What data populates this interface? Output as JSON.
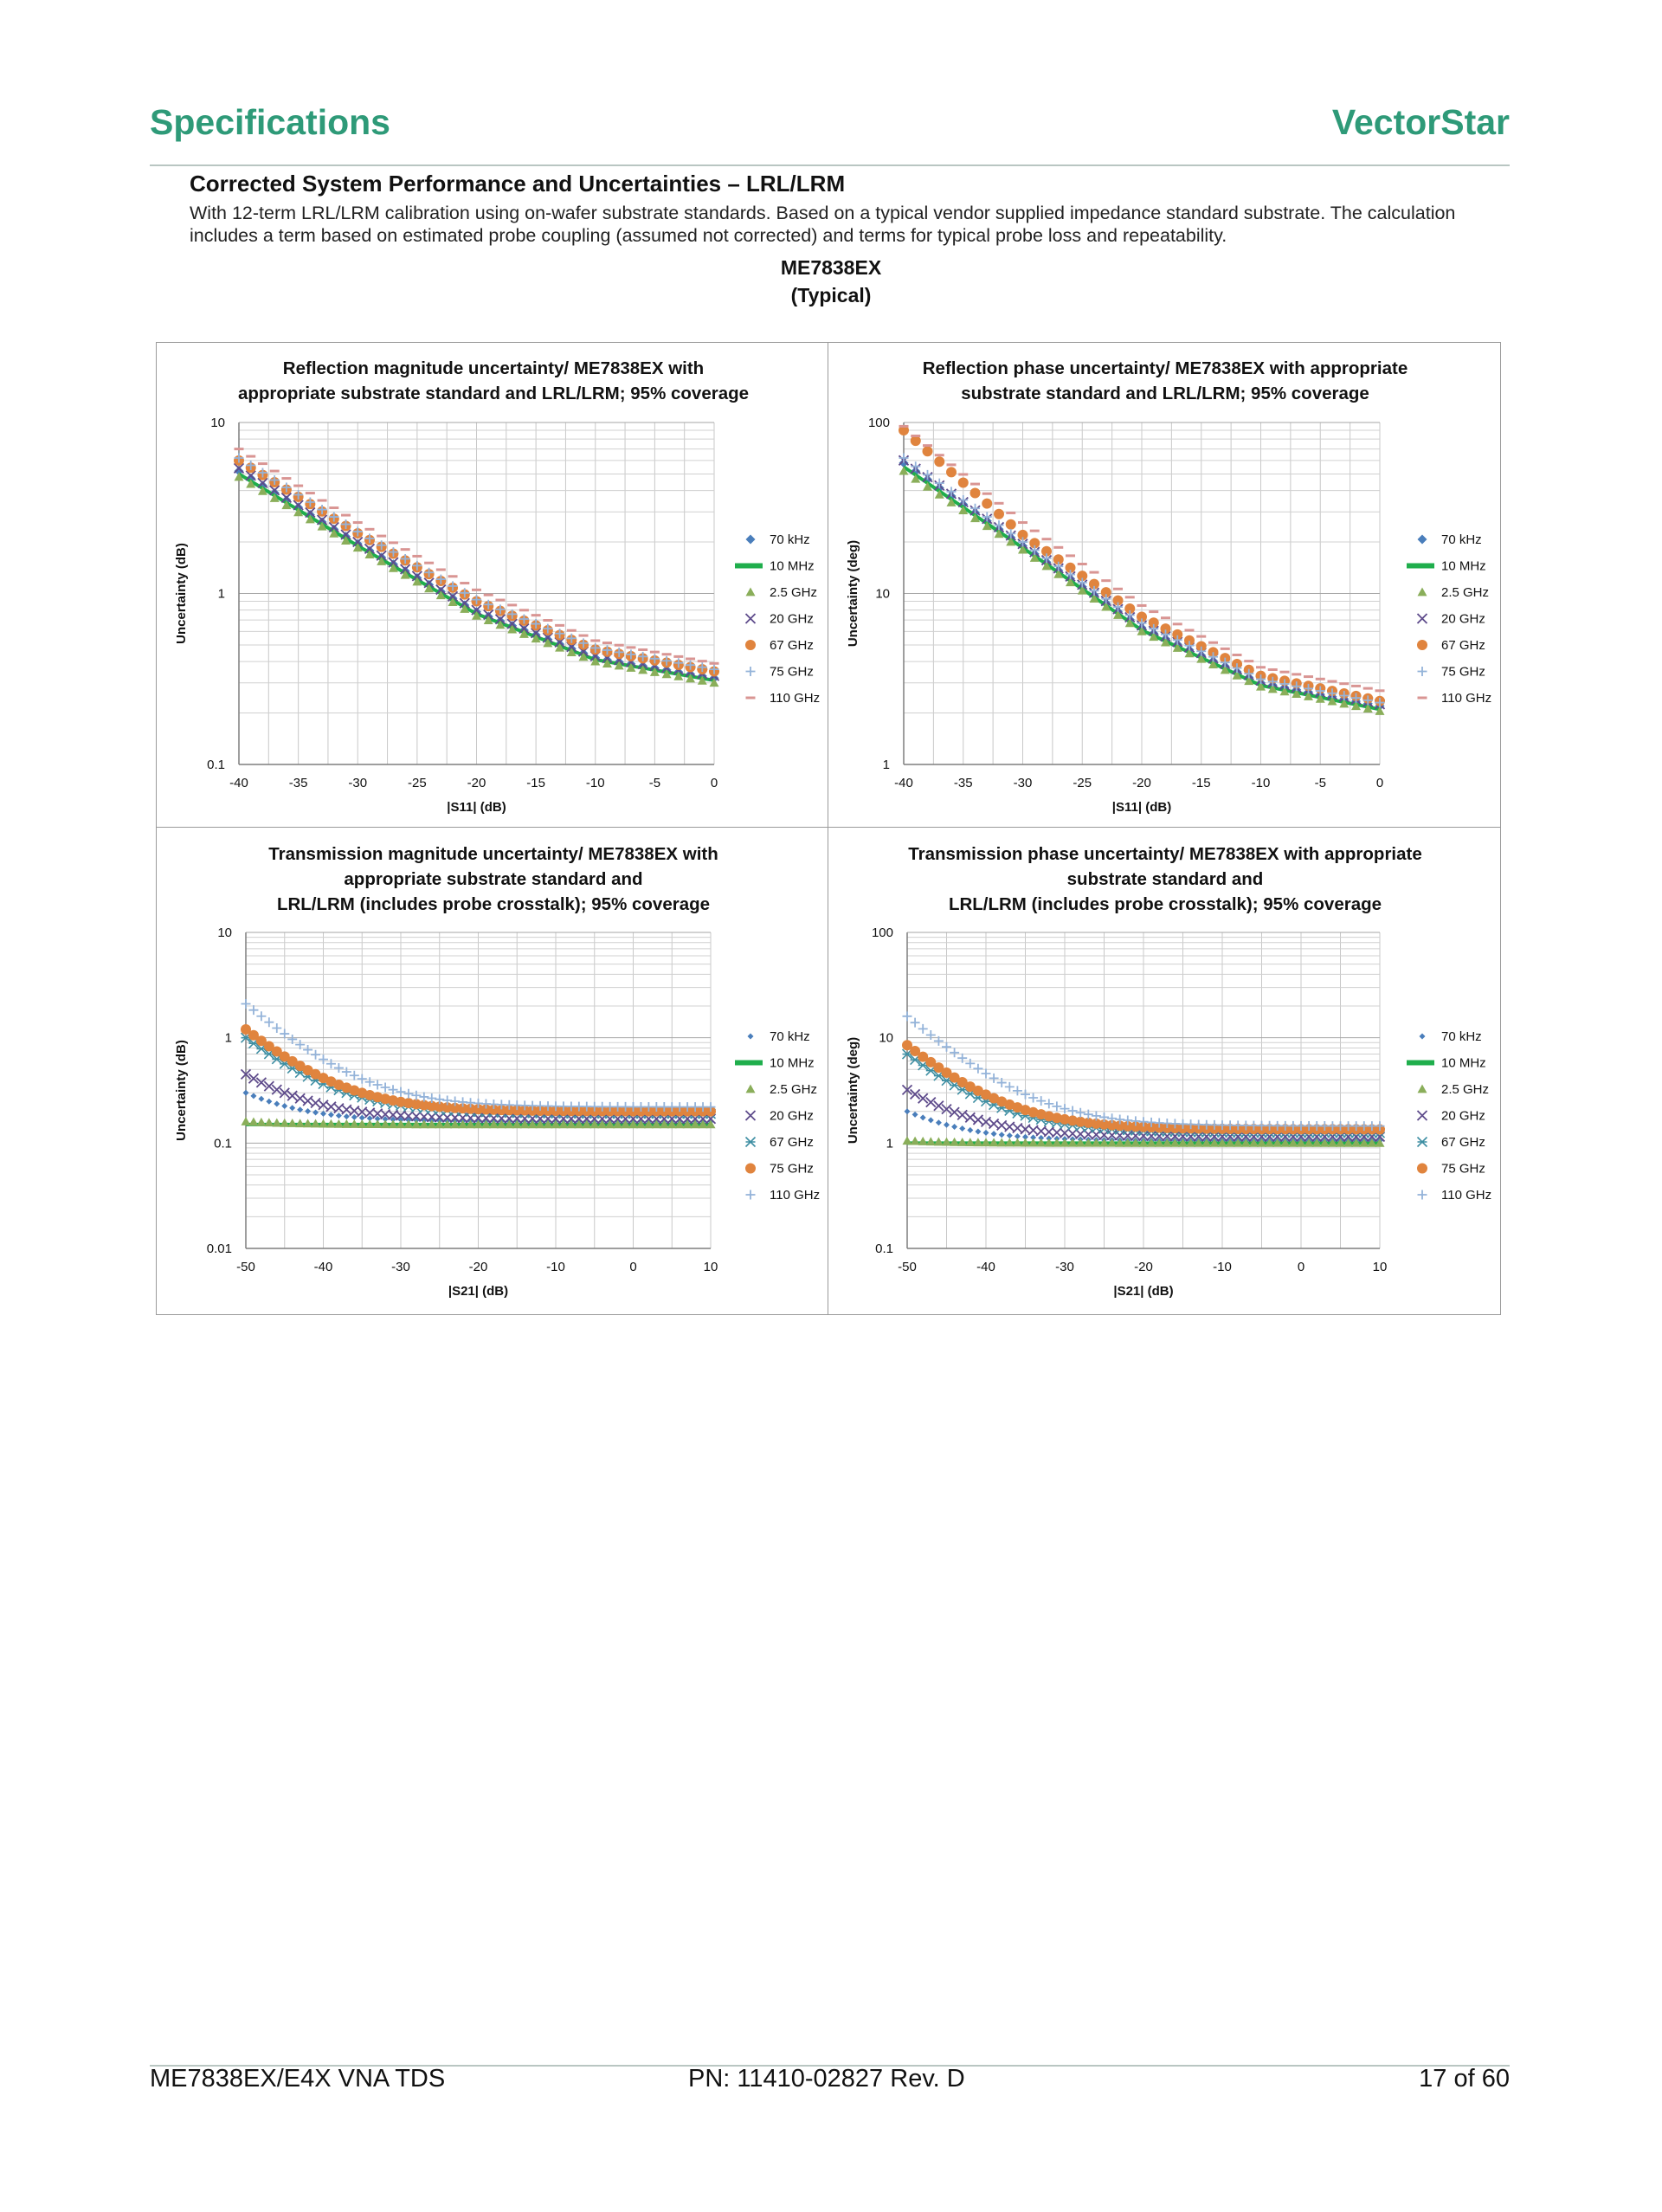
{
  "header": {
    "left": "Specifications",
    "right": "VectorStar"
  },
  "section": {
    "title": "Corrected System Performance and Uncertainties – LRL/LRM",
    "description": "With 12-term LRL/LRM calibration using on-wafer substrate standards. Based on a typical vendor supplied impedance standard substrate. The calculation includes a term based on estimated probe coupling (assumed not corrected) and terms for typical probe loss and repeatability.",
    "model": "ME7838EX",
    "model_note": "(Typical)"
  },
  "footer": {
    "left": "ME7838EX/E4X VNA TDS",
    "center": "PN: 11410-02827  Rev. D",
    "right": "17 of 60"
  },
  "colors": {
    "brand": "#2e9a78",
    "grid": "#bfbfbf",
    "axis": "#7f7f7f"
  },
  "chart_data": [
    {
      "type": "scatter",
      "title_lines": [
        "Reflection magnitude uncertainty/ ME7838EX with",
        "appropriate substrate standard and LRL/LRM; 95% coverage"
      ],
      "xlabel": "|S11| (dB)",
      "ylabel": "Uncertainty (dB)",
      "xlim": [
        -40,
        0
      ],
      "xticks": [
        -40,
        -35,
        -30,
        -25,
        -20,
        -15,
        -10,
        -5,
        0
      ],
      "ylim": [
        0.1,
        10
      ],
      "yscale": "log",
      "yticks": [
        0.1,
        1,
        10
      ],
      "ytick_labels": [
        "0.1",
        "1",
        "10"
      ],
      "legend_position": "right",
      "series": [
        {
          "name": "70 kHz",
          "marker": "diamond",
          "color": "#4a7ebb",
          "values_at_x": {
            "-40": 5.2,
            "-30": 1.95,
            "-20": 0.78,
            "-10": 0.42,
            "0": 0.32
          }
        },
        {
          "name": "10 MHz",
          "marker": "line",
          "color": "#1fae4c",
          "values_at_x": {
            "-40": 5.0,
            "-30": 1.9,
            "-20": 0.76,
            "-10": 0.41,
            "0": 0.31
          }
        },
        {
          "name": "2.5 GHz",
          "marker": "triangle",
          "color": "#8aae5a",
          "values_at_x": {
            "-40": 4.8,
            "-30": 1.85,
            "-20": 0.74,
            "-10": 0.4,
            "0": 0.3
          }
        },
        {
          "name": "20 GHz",
          "marker": "x",
          "color": "#5e4b8b",
          "values_at_x": {
            "-40": 5.4,
            "-30": 2.0,
            "-20": 0.8,
            "-10": 0.43,
            "0": 0.33
          }
        },
        {
          "name": "67 GHz",
          "marker": "circle",
          "color": "#e0843e",
          "values_at_x": {
            "-40": 6.0,
            "-30": 2.25,
            "-20": 0.9,
            "-10": 0.47,
            "0": 0.35
          }
        },
        {
          "name": "75 GHz",
          "marker": "plus",
          "color": "#94b3d9",
          "values_at_x": {
            "-40": 6.2,
            "-30": 2.3,
            "-20": 0.92,
            "-10": 0.48,
            "0": 0.36
          }
        },
        {
          "name": "110 GHz",
          "marker": "dash",
          "color": "#d99593",
          "values_at_x": {
            "-40": 7.0,
            "-30": 2.6,
            "-20": 1.05,
            "-10": 0.53,
            "0": 0.39
          }
        }
      ]
    },
    {
      "type": "scatter",
      "title_lines": [
        "Reflection phase uncertainty/ ME7838EX with appropriate",
        "substrate standard and LRL/LRM; 95% coverage"
      ],
      "xlabel": "|S11| (dB)",
      "ylabel": "Uncertainty (deg)",
      "xlim": [
        -40,
        0
      ],
      "xticks": [
        -40,
        -35,
        -30,
        -25,
        -20,
        -15,
        -10,
        -5,
        0
      ],
      "ylim": [
        1,
        100
      ],
      "yscale": "log",
      "yticks": [
        1,
        10,
        100
      ],
      "ytick_labels": [
        "1",
        "10",
        "100"
      ],
      "legend_position": "right",
      "series": [
        {
          "name": "70 kHz",
          "marker": "diamond",
          "color": "#4a7ebb",
          "values_at_x": {
            "-40": 58,
            "-30": 19,
            "-20": 6.3,
            "-10": 3.0,
            "0": 2.2
          }
        },
        {
          "name": "10 MHz",
          "marker": "line",
          "color": "#1fae4c",
          "values_at_x": {
            "-40": 55,
            "-30": 18.5,
            "-20": 6.1,
            "-10": 2.9,
            "0": 2.1
          }
        },
        {
          "name": "2.5 GHz",
          "marker": "triangle",
          "color": "#8aae5a",
          "values_at_x": {
            "-40": 52,
            "-30": 18,
            "-20": 6.0,
            "-10": 2.85,
            "0": 2.05
          }
        },
        {
          "name": "20 GHz",
          "marker": "x",
          "color": "#5e4b8b",
          "values_at_x": {
            "-40": 60,
            "-30": 19.5,
            "-20": 6.5,
            "-10": 3.1,
            "0": 2.25
          }
        },
        {
          "name": "67 GHz",
          "marker": "circle",
          "color": "#e0843e",
          "values_at_x": {
            "-40": 90,
            "-30": 22,
            "-20": 7.3,
            "-10": 3.3,
            "0": 2.35
          }
        },
        {
          "name": "75 GHz",
          "marker": "plus",
          "color": "#94b3d9",
          "values_at_x": {
            "-40": 62,
            "-30": 20,
            "-20": 6.7,
            "-10": 3.15,
            "0": 2.3
          }
        },
        {
          "name": "110 GHz",
          "marker": "dash",
          "color": "#d99593",
          "values_at_x": {
            "-40": 95,
            "-30": 26,
            "-20": 8.5,
            "-10": 3.7,
            "0": 2.7
          }
        }
      ]
    },
    {
      "type": "scatter",
      "title_lines": [
        "Transmission magnitude uncertainty/ ME7838EX with",
        "appropriate substrate standard and",
        "LRL/LRM (includes probe crosstalk); 95% coverage"
      ],
      "xlabel": "|S21| (dB)",
      "ylabel": "Uncertainty (dB)",
      "xlim": [
        -50,
        10
      ],
      "xticks": [
        -50,
        -40,
        -30,
        -20,
        -10,
        0,
        10
      ],
      "ylim": [
        0.01,
        10
      ],
      "yscale": "log",
      "yticks": [
        0.01,
        0.1,
        1,
        10
      ],
      "ytick_labels": [
        "0.01",
        "0.1",
        "1",
        "10"
      ],
      "legend_position": "right",
      "series": [
        {
          "name": "70 kHz",
          "marker": "diamond-small",
          "color": "#4a7ebb",
          "floor": 0.16,
          "start": 0.3
        },
        {
          "name": "10 MHz",
          "marker": "line",
          "color": "#1fae4c",
          "floor": 0.15,
          "start": 0.15
        },
        {
          "name": "2.5 GHz",
          "marker": "triangle",
          "color": "#8aae5a",
          "floor": 0.15,
          "start": 0.16
        },
        {
          "name": "20 GHz",
          "marker": "x",
          "color": "#5e4b8b",
          "floor": 0.17,
          "start": 0.45
        },
        {
          "name": "67 GHz",
          "marker": "star",
          "color": "#3f8fa3",
          "floor": 0.19,
          "start": 1.0
        },
        {
          "name": "75 GHz",
          "marker": "circle",
          "color": "#e0843e",
          "floor": 0.2,
          "start": 1.2
        },
        {
          "name": "110 GHz",
          "marker": "plus",
          "color": "#94b3d9",
          "floor": 0.22,
          "start": 2.1
        }
      ]
    },
    {
      "type": "scatter",
      "title_lines": [
        "Transmission phase uncertainty/ ME7838EX with appropriate",
        "substrate standard and",
        "LRL/LRM (includes probe crosstalk); 95% coverage"
      ],
      "xlabel": "|S21| (dB)",
      "ylabel": "Uncertainty (deg)",
      "xlim": [
        -50,
        10
      ],
      "xticks": [
        -50,
        -40,
        -30,
        -20,
        -10,
        0,
        10
      ],
      "ylim": [
        0.1,
        100
      ],
      "yscale": "log",
      "yticks": [
        0.1,
        1,
        10,
        100
      ],
      "ytick_labels": [
        "0.1",
        "1",
        "10",
        "100"
      ],
      "legend_position": "right",
      "series": [
        {
          "name": "70 kHz",
          "marker": "diamond-small",
          "color": "#4a7ebb",
          "floor": 1.05,
          "start": 2.0
        },
        {
          "name": "10 MHz",
          "marker": "line",
          "color": "#1fae4c",
          "floor": 1.0,
          "start": 1.0
        },
        {
          "name": "2.5 GHz",
          "marker": "triangle",
          "color": "#8aae5a",
          "floor": 1.0,
          "start": 1.05
        },
        {
          "name": "20 GHz",
          "marker": "x",
          "color": "#5e4b8b",
          "floor": 1.15,
          "start": 3.2
        },
        {
          "name": "67 GHz",
          "marker": "star",
          "color": "#3f8fa3",
          "floor": 1.25,
          "start": 7.0
        },
        {
          "name": "75 GHz",
          "marker": "circle",
          "color": "#e0843e",
          "floor": 1.35,
          "start": 8.5
        },
        {
          "name": "110 GHz",
          "marker": "plus",
          "color": "#94b3d9",
          "floor": 1.45,
          "start": 16
        }
      ]
    }
  ]
}
